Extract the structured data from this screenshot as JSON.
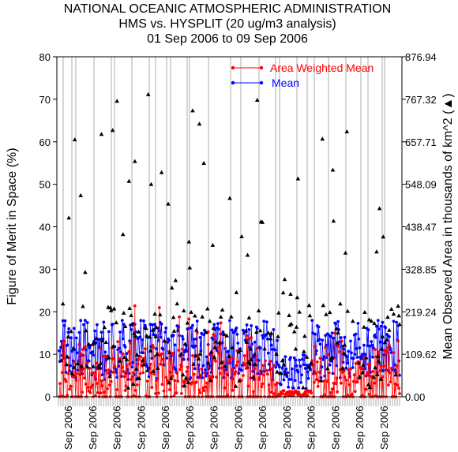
{
  "titles": {
    "line1": "NATIONAL OCEANIC ATMOSPHERIC ADMINISTRATION",
    "line2": "HMS vs. HYSPLIT (20 ug/m3 analysis)",
    "line3": "01 Sep 2006 to 09 Sep 2006"
  },
  "chart_data": {
    "type": "scatter",
    "ylabel": "Figure of Merit in Space (%)",
    "y2label": "Mean Observed Area in thousands of km^2 (▲)",
    "ylim": [
      0,
      80
    ],
    "yticks": [
      "0",
      "10",
      "20",
      "30",
      "40",
      "50",
      "60",
      "70",
      "80"
    ],
    "y2ticks": [
      "0.00",
      "109.62",
      "219.24",
      "328.85",
      "438.47",
      "548.09",
      "657.71",
      "767.32",
      "876.94"
    ],
    "xtick_labels": [
      "Sep 2006",
      "Sep 2006",
      "Sep 2006",
      "Sep 2006",
      "Sep 2006",
      "Sep 2006",
      "Sep 2006",
      "Sep 2006",
      "Sep 2006",
      "Sep 2006",
      "Sep 2006",
      "Sep 2006",
      "Sep 2006",
      "Sep 2006"
    ],
    "legend": {
      "placement": "top-right",
      "entries": [
        {
          "name": "Area Weighted Mean",
          "color": "#ff0000"
        },
        {
          "name": "Mean",
          "color": "#0000ff"
        }
      ]
    },
    "grid": "vertical",
    "n_points": 460,
    "red_color": "#ff0000",
    "blue_color": "#0000ff",
    "triangle_color": "#000000"
  }
}
